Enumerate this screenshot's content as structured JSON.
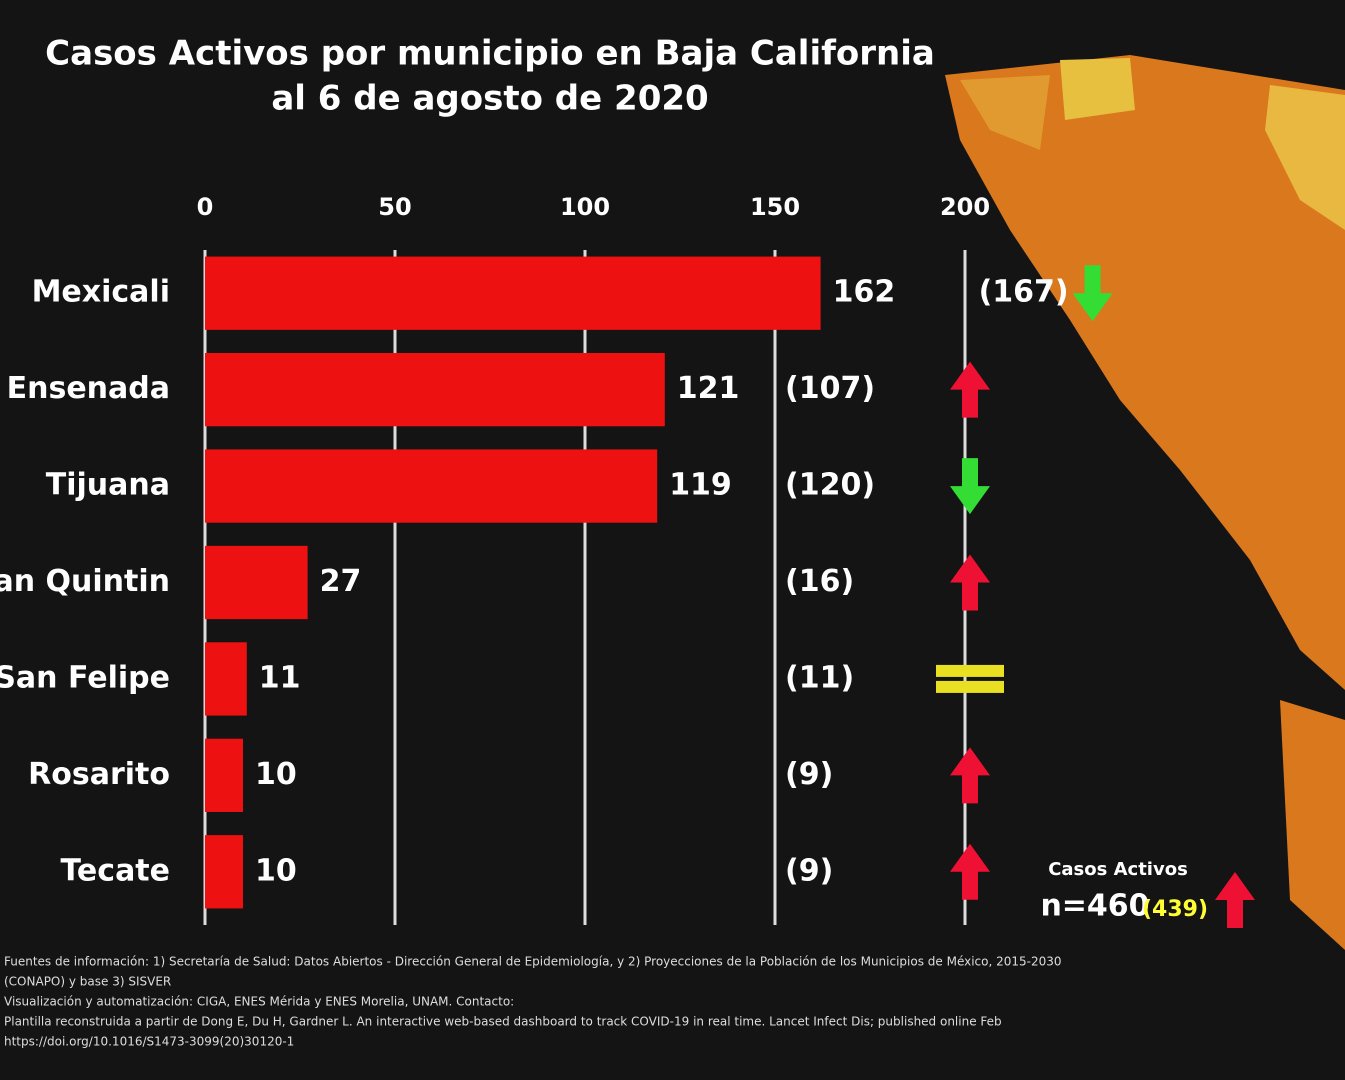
{
  "chart_data": {
    "type": "bar",
    "orientation": "horizontal",
    "title": "Casos Activos por municipio en Baja California",
    "subtitle": "al 6 de agosto de 2020",
    "categories": [
      "Mexicali",
      "Ensenada",
      "Tijuana",
      "San Quintin",
      "San Felipe",
      "Rosarito",
      "Tecate"
    ],
    "values": [
      162,
      121,
      119,
      27,
      11,
      10,
      10
    ],
    "color": "#ee1111",
    "previous_values": [
      167,
      107,
      120,
      16,
      11,
      9,
      9
    ],
    "previous_value_labels": [
      "(167)",
      "(107)",
      "(120)",
      "(16)",
      "(11)",
      "(9)",
      "(9)"
    ],
    "xlim": [
      0,
      200
    ],
    "xticks": [
      0,
      50,
      100,
      150,
      200
    ],
    "grid": true,
    "total_label": "Casos Activos",
    "total": 460,
    "total_value_label": "n=460",
    "total_previous": 439,
    "total_previous_label": "(439)",
    "footnotes": [
      "Fuentes de información: 1) Secretaría de Salud: Datos Abiertos - Dirección General de Epidemiología, y 2) Proyecciones de la Población de los Municipios de México, 2015-2030",
      "(CONAPO) y base 3) SISVER",
      "Visualización y automatización: CIGA, ENES Mérida y ENES Morelia, UNAM. Contacto: ",
      "Plantilla reconstruida a partir de Dong E, Du H, Gardner L. An interactive web-based dashboard to track COVID-19 in real time. Lancet Infect Dis; published online Feb",
      "https://doi.org/10.1016/S1473-3099(20)30120-1"
    ]
  }
}
